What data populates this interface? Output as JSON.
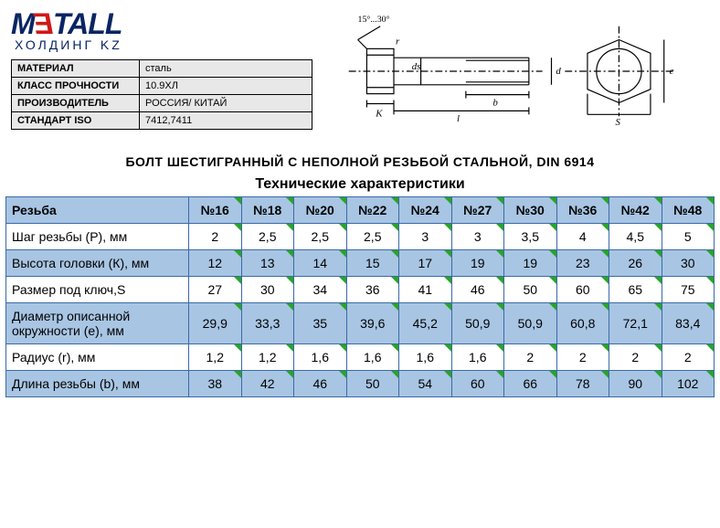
{
  "logo": {
    "text": "METALL",
    "sub": "ХОЛДИНГ KZ",
    "main_color": "#0a2563",
    "accent_color": "#d01818"
  },
  "info": {
    "rows": [
      {
        "label": "МАТЕРИАЛ",
        "value": "сталь"
      },
      {
        "label": "КЛАСС ПРОЧНОСТИ",
        "value": "10.9ХЛ"
      },
      {
        "label": "ПРОИЗВОДИТЕЛЬ",
        "value": "РОССИЯ/ КИТАЙ"
      },
      {
        "label": "СТАНДАРТ ISO",
        "value": "7412,7411"
      }
    ]
  },
  "diagram": {
    "angle_label": "15°...30°",
    "dims": {
      "r": "r",
      "ds": "ds",
      "K": "K",
      "b": "b",
      "l": "l",
      "d": "d",
      "e": "e",
      "S": "S"
    },
    "stroke": "#000000"
  },
  "title": "БОЛТ ШЕСТИГРАННЫЙ С НЕПОЛНОЙ РЕЗЬБОЙ СТАЛЬНОЙ, DIN 6914",
  "spec": {
    "title": "Технические характеристики",
    "header_bg": "#a8c5e3",
    "alt_row_bg": "#a8c5e3",
    "border_color": "#3a6aa8",
    "corner_color": "#28a428",
    "col_header": "Резьба",
    "columns": [
      "№16",
      "№18",
      "№20",
      "№22",
      "№24",
      "№27",
      "№30",
      "№36",
      "№42",
      "№48"
    ],
    "rows": [
      {
        "label": "Шаг резьбы (P), мм",
        "vals": [
          "2",
          "2,5",
          "2,5",
          "2,5",
          "3",
          "3",
          "3,5",
          "4",
          "4,5",
          "5"
        ]
      },
      {
        "label": "Высота головки (К), мм",
        "vals": [
          "12",
          "13",
          "14",
          "15",
          "17",
          "19",
          "19",
          "23",
          "26",
          "30"
        ]
      },
      {
        "label": "Размер под ключ,S",
        "vals": [
          "27",
          "30",
          "34",
          "36",
          "41",
          "46",
          "50",
          "60",
          "65",
          "75"
        ]
      },
      {
        "label": "Диаметр описанной окружности (e), мм",
        "vals": [
          "29,9",
          "33,3",
          "35",
          "39,6",
          "45,2",
          "50,9",
          "50,9",
          "60,8",
          "72,1",
          "83,4"
        ]
      },
      {
        "label": "Радиус (r), мм",
        "vals": [
          "1,2",
          "1,2",
          "1,6",
          "1,6",
          "1,6",
          "1,6",
          "2",
          "2",
          "2",
          "2"
        ]
      },
      {
        "label": "Длина резьбы (b), мм",
        "vals": [
          "38",
          "42",
          "46",
          "50",
          "54",
          "60",
          "66",
          "78",
          "90",
          "102"
        ]
      }
    ]
  }
}
